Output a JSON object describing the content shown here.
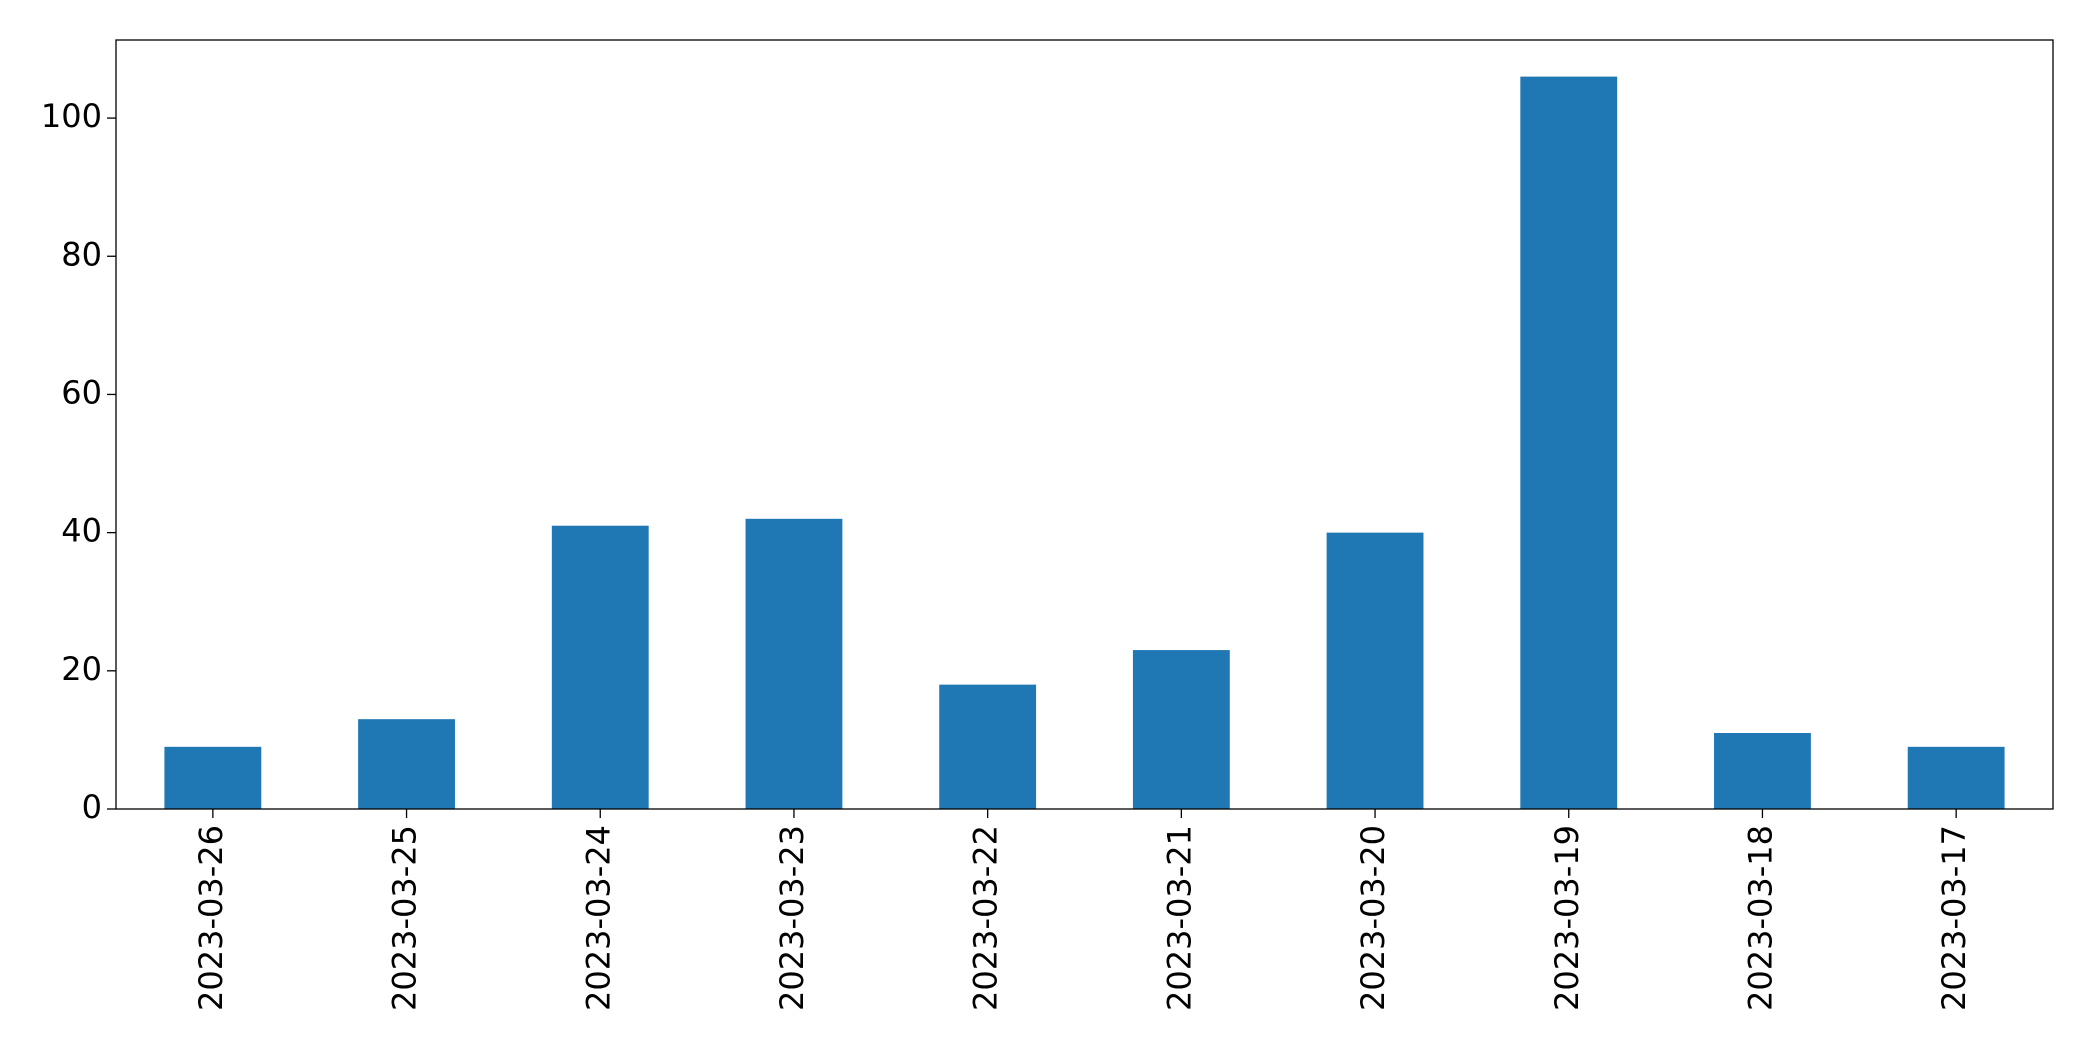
{
  "chart_data": {
    "type": "bar",
    "categories": [
      "2023-03-26",
      "2023-03-25",
      "2023-03-24",
      "2023-03-23",
      "2023-03-22",
      "2023-03-21",
      "2023-03-20",
      "2023-03-19",
      "2023-03-18",
      "2023-03-17"
    ],
    "values": [
      9,
      13,
      41,
      42,
      18,
      23,
      40,
      106,
      11,
      9
    ],
    "color": "#1f77b4",
    "ylim": [
      0,
      111.3
    ],
    "yticks": [
      0,
      20,
      40,
      60,
      80,
      100
    ],
    "grid": false
  }
}
